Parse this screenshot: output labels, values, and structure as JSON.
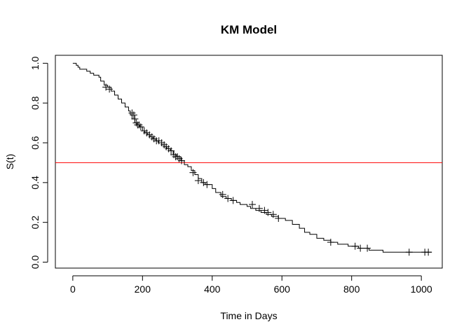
{
  "chart_data": {
    "type": "line",
    "title": "KM Model",
    "xlabel": "Time in Days",
    "ylabel": "S(t)",
    "xlim": [
      -50,
      1060
    ],
    "ylim": [
      -0.03,
      1.04
    ],
    "xticks": [
      0,
      200,
      400,
      600,
      800,
      1000
    ],
    "yticks": [
      0.0,
      0.2,
      0.4,
      0.6,
      0.8,
      1.0
    ],
    "xtick_labels": [
      "0",
      "200",
      "400",
      "600",
      "800",
      "1000"
    ],
    "ytick_labels": [
      "0.0",
      "0.2",
      "0.4",
      "0.6",
      "0.8",
      "1.0"
    ],
    "grid": false,
    "reference_line": {
      "y": 0.5,
      "color": "#ff0000"
    },
    "series": [
      {
        "line_style": "step",
        "color": "#000000",
        "x": [
          0,
          10,
          15,
          20,
          40,
          50,
          60,
          75,
          80,
          90,
          100,
          110,
          120,
          130,
          140,
          150,
          160,
          165,
          170,
          178,
          185,
          192,
          200,
          207,
          215,
          222,
          230,
          238,
          245,
          255,
          262,
          270,
          280,
          288,
          298,
          310,
          320,
          330,
          340,
          350,
          360,
          370,
          380,
          400,
          410,
          425,
          440,
          455,
          470,
          480,
          500,
          510,
          525,
          540,
          555,
          570,
          590,
          610,
          630,
          650,
          665,
          680,
          700,
          720,
          740,
          760,
          790,
          820,
          850,
          890,
          960,
          1030
        ],
        "y": [
          1.0,
          0.99,
          0.98,
          0.97,
          0.96,
          0.95,
          0.94,
          0.93,
          0.91,
          0.89,
          0.88,
          0.86,
          0.84,
          0.82,
          0.8,
          0.78,
          0.76,
          0.74,
          0.72,
          0.7,
          0.69,
          0.68,
          0.66,
          0.65,
          0.64,
          0.63,
          0.62,
          0.61,
          0.6,
          0.59,
          0.58,
          0.57,
          0.56,
          0.54,
          0.53,
          0.51,
          0.49,
          0.48,
          0.46,
          0.44,
          0.42,
          0.4,
          0.39,
          0.37,
          0.35,
          0.33,
          0.32,
          0.31,
          0.3,
          0.29,
          0.28,
          0.27,
          0.26,
          0.25,
          0.24,
          0.23,
          0.22,
          0.21,
          0.19,
          0.17,
          0.15,
          0.14,
          0.12,
          0.11,
          0.1,
          0.09,
          0.08,
          0.07,
          0.06,
          0.05,
          0.05,
          0.05
        ],
        "censored": [
          [
            95,
            0.88
          ],
          [
            105,
            0.87
          ],
          [
            170,
            0.75
          ],
          [
            175,
            0.74
          ],
          [
            178,
            0.72
          ],
          [
            182,
            0.7
          ],
          [
            186,
            0.69
          ],
          [
            190,
            0.69
          ],
          [
            195,
            0.68
          ],
          [
            205,
            0.66
          ],
          [
            212,
            0.65
          ],
          [
            220,
            0.64
          ],
          [
            227,
            0.63
          ],
          [
            233,
            0.62
          ],
          [
            240,
            0.61
          ],
          [
            247,
            0.61
          ],
          [
            255,
            0.6
          ],
          [
            262,
            0.59
          ],
          [
            268,
            0.58
          ],
          [
            275,
            0.57
          ],
          [
            282,
            0.56
          ],
          [
            290,
            0.54
          ],
          [
            295,
            0.53
          ],
          [
            300,
            0.53
          ],
          [
            305,
            0.52
          ],
          [
            312,
            0.51
          ],
          [
            345,
            0.45
          ],
          [
            360,
            0.41
          ],
          [
            375,
            0.4
          ],
          [
            385,
            0.39
          ],
          [
            430,
            0.34
          ],
          [
            445,
            0.32
          ],
          [
            460,
            0.31
          ],
          [
            515,
            0.29
          ],
          [
            535,
            0.27
          ],
          [
            550,
            0.26
          ],
          [
            560,
            0.25
          ],
          [
            575,
            0.24
          ],
          [
            590,
            0.22
          ],
          [
            740,
            0.1
          ],
          [
            810,
            0.08
          ],
          [
            825,
            0.07
          ],
          [
            845,
            0.07
          ],
          [
            965,
            0.05
          ],
          [
            1010,
            0.05
          ],
          [
            1020,
            0.05
          ]
        ]
      }
    ]
  }
}
